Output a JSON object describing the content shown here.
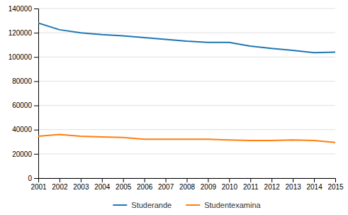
{
  "chart_data": {
    "type": "line",
    "x": [
      2001,
      2002,
      2003,
      2004,
      2005,
      2006,
      2007,
      2008,
      2009,
      2010,
      2011,
      2012,
      2013,
      2014,
      2015
    ],
    "series": [
      {
        "name": "Studerande",
        "values": [
          128000,
          122500,
          120000,
          118500,
          117500,
          116000,
          114500,
          113000,
          112000,
          112000,
          109000,
          107000,
          105500,
          103500,
          104000
        ]
      },
      {
        "name": "Studentexamina",
        "values": [
          34500,
          36000,
          34500,
          34000,
          33500,
          32000,
          32000,
          32000,
          32000,
          31500,
          31000,
          31000,
          31500,
          31000,
          29500
        ]
      }
    ],
    "xlim": [
      2001,
      2015
    ],
    "xticks": [
      2001,
      2002,
      2003,
      2004,
      2005,
      2006,
      2007,
      2008,
      2009,
      2010,
      2011,
      2012,
      2013,
      2014,
      2015
    ],
    "ylim": [
      0,
      140000
    ],
    "yticks": [
      0,
      20000,
      40000,
      60000,
      80000,
      100000,
      120000,
      140000
    ],
    "grid": true,
    "legend": "bottom"
  }
}
